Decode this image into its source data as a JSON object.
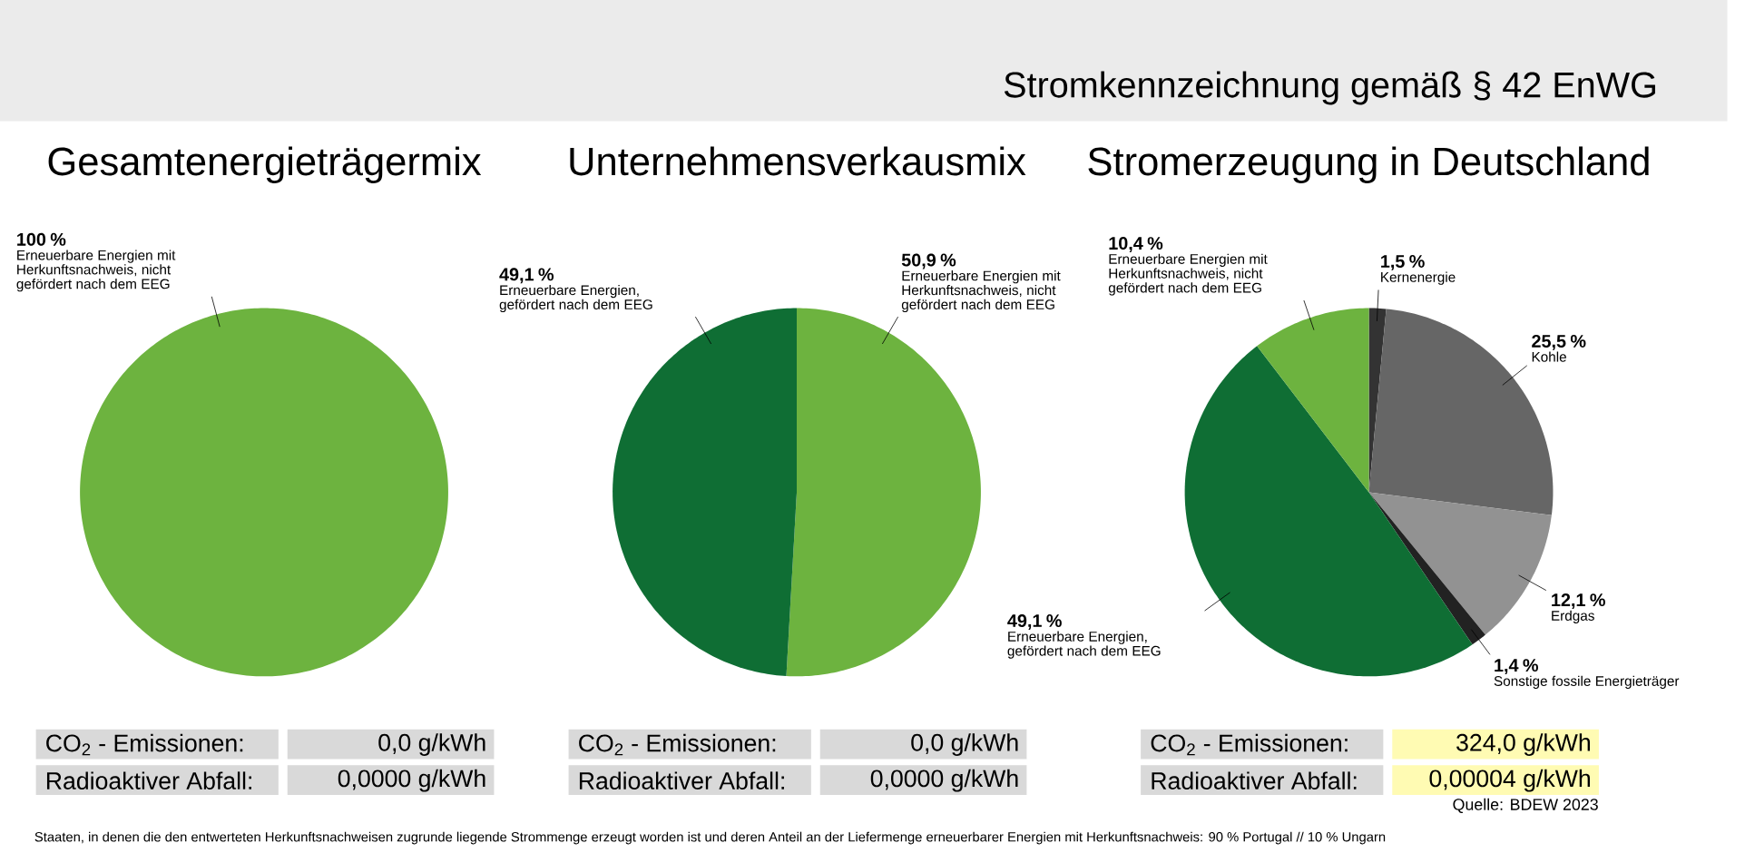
{
  "chart_data": [
    {
      "type": "pie",
      "title": "Gesamtenergieträgermix",
      "categories": [
        "Erneuerbare Energien mit Herkunftsnachweis, nicht gefördert nach dem EEG"
      ],
      "values": [
        100
      ],
      "colors": [
        "#6db33f"
      ],
      "value_labels": [
        "100 %"
      ],
      "annotations": [
        "CO$_{2}$ - Emissionen:",
        "0,0 g/kWh",
        "Radioaktiver Abfall:",
        "0,0000 g/kWh",
        "Stromkennzeichnung gemäß § 42 EnWG",
        "Staaten, in denen die den entwerteten Herkunftsnachweisen zugrunde liegende Strommenge erzeugt worden ist und deren Anteil an der Liefermenge erneuerbarer Energien mit Herkunftsnachweis: 90 % Portugal // 10 % Ungarn"
      ]
    },
    {
      "type": "pie",
      "title": "Unternehmensverkausmix",
      "categories": [
        "Erneuerbare Energien mit Herkunftsnachweis, nicht gefördert nach dem EEG",
        "Erneuerbare Energien, gefördert nach dem EEG"
      ],
      "values": [
        50.9,
        49.1
      ],
      "colors": [
        "#6db33f",
        "#0f6e34"
      ],
      "value_labels": [
        "50,9 %",
        "49,1 %"
      ],
      "annotations": [
        "CO$_{2}$ - Emissionen:",
        "0,0 g/kWh",
        "Radioaktiver Abfall:",
        "0,0000 g/kWh"
      ]
    },
    {
      "type": "pie",
      "title": "Stromerzeugung in Deutschland",
      "categories": [
        "Kernenergie",
        "Kohle",
        "Erdgas",
        "Sonstige fossile Energieträger",
        "Erneuerbare Energien, gefördert nach dem EEG",
        "Erneuerbare Energien mit Herkunftsnachweis, nicht gefördert nach dem EEG"
      ],
      "values": [
        1.5,
        25.5,
        12.1,
        1.4,
        49.1,
        10.4
      ],
      "colors": [
        "#333333",
        "#666666",
        "#929292",
        "#222222",
        "#0f6e34",
        "#6db33f"
      ],
      "value_labels": [
        "1,5 %",
        "25,5 %",
        "12,1 %",
        "1,4 %",
        "49,1 %",
        "10,4 %"
      ],
      "annotations": [
        "CO$_{2}$ - Emissionen:",
        "324,0 g/kWh",
        "Radioaktiver Abfall:",
        "0,00004 g/kWh",
        "Quelle: BDEW 2023"
      ]
    }
  ]
}
